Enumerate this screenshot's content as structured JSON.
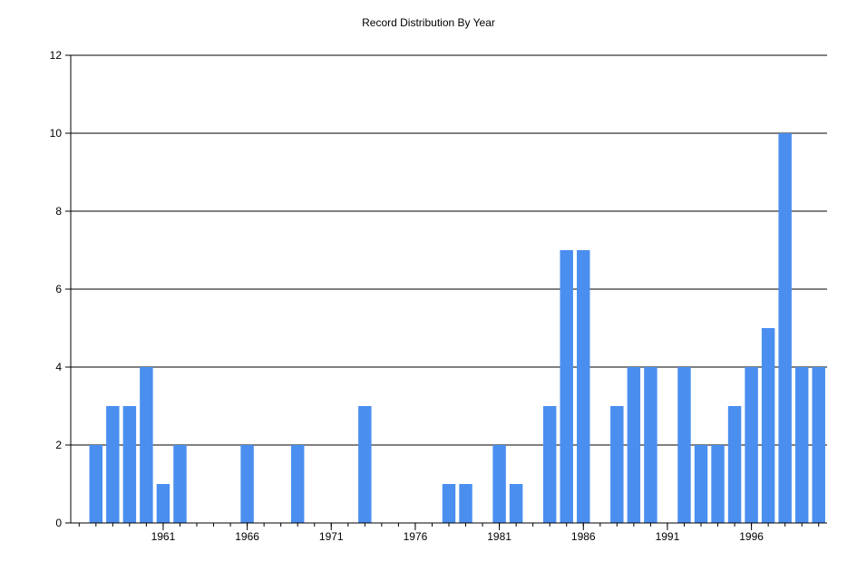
{
  "chart_data": {
    "type": "bar",
    "title": "Record Distribution By Year",
    "xlabel": "",
    "ylabel": "",
    "ylim": [
      0,
      12
    ],
    "yticks": [
      "0",
      "2",
      "4",
      "6",
      "8",
      "10",
      "12"
    ],
    "xlim": [
      1955.5,
      2000.5
    ],
    "xticks": [
      "1961",
      "1966",
      "1971",
      "1976",
      "1981",
      "1986",
      "1991",
      "1996"
    ],
    "grid": "horizontal",
    "bar_color": "#4a8ff0",
    "x": [
      1957,
      1958,
      1959,
      1960,
      1961,
      1962,
      1966,
      1969,
      1973,
      1978,
      1979,
      1981,
      1982,
      1984,
      1985,
      1986,
      1988,
      1989,
      1990,
      1992,
      1993,
      1994,
      1995,
      1996,
      1997,
      1998,
      1999,
      2000
    ],
    "values": [
      2,
      3,
      3,
      4,
      1,
      2,
      2,
      2,
      3,
      1,
      1,
      2,
      1,
      3,
      7,
      7,
      3,
      4,
      4,
      4,
      2,
      2,
      3,
      4,
      5,
      10,
      4,
      4
    ]
  }
}
